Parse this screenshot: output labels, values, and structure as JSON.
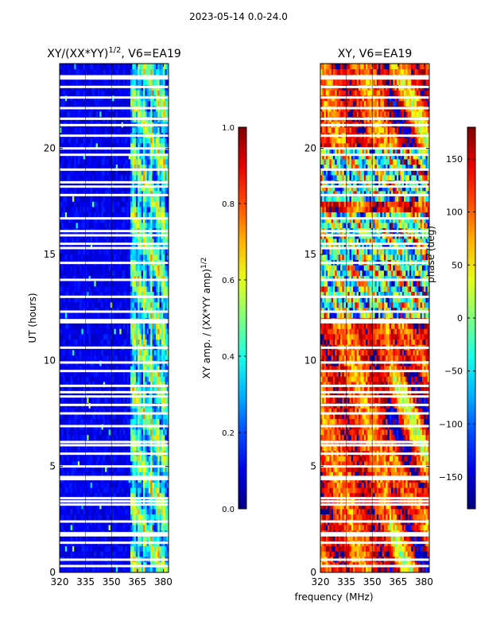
{
  "figure": {
    "suptitle": "2023-05-14 0.0-24.0",
    "xlabel": "frequency (MHz)"
  },
  "chart_data": [
    {
      "type": "heatmap",
      "title": "XY/(XX*YY)^1/2, V6=EA19",
      "title_main": "XY/(XX*YY)",
      "title_exp": "1/2",
      "title_tail": ", V6=EA19",
      "xlabel": "frequency (MHz)",
      "ylabel": "UT (hours)",
      "xlim": [
        320,
        383
      ],
      "ylim": [
        0,
        24
      ],
      "xticks": [
        320,
        335,
        350,
        365,
        380
      ],
      "yticks": [
        0,
        5,
        10,
        15,
        20
      ],
      "colorbar": {
        "label_main": "XY amp. / (XX*YY amp)",
        "label_exp": "1/2",
        "range": [
          0.0,
          1.0
        ],
        "ticks": [
          "0.0",
          "0.2",
          "0.4",
          "0.6",
          "0.8",
          "1.0"
        ],
        "tick_values": [
          0.0,
          0.2,
          0.4,
          0.6,
          0.8,
          1.0
        ]
      },
      "colormap": "jet"
    },
    {
      "type": "heatmap",
      "title": "XY, V6=EA19",
      "xlabel": "frequency (MHz)",
      "ylabel": "",
      "xlim": [
        320,
        383
      ],
      "ylim": [
        0,
        24
      ],
      "xticks": [
        320,
        335,
        350,
        365,
        380
      ],
      "yticks": [
        0,
        5,
        10,
        15,
        20
      ],
      "colorbar": {
        "label_main": "phase (deg)",
        "range": [
          -180,
          180
        ],
        "ticks": [
          "−150",
          "−100",
          "−50",
          "0",
          "50",
          "100",
          "150"
        ],
        "tick_values": [
          -150,
          -100,
          -50,
          0,
          50,
          100,
          150
        ]
      },
      "colormap": "jet"
    }
  ],
  "blank_rows_ut": [
    0.3,
    0.6,
    1.4,
    1.75,
    1.85,
    2.4,
    3.2,
    3.35,
    3.5,
    4.4,
    4.5,
    5.0,
    5.6,
    6.0,
    6.15,
    6.9,
    7.5,
    7.9,
    8.3,
    8.5,
    8.8,
    9.5,
    9.9,
    10.6,
    11.8,
    11.9,
    12.3,
    13.0,
    13.8,
    14.6,
    15.3,
    15.5,
    15.9,
    16.1,
    16.7,
    17.8,
    18.2,
    18.4,
    19.0,
    19.7,
    20.0,
    20.6,
    21.1,
    21.4,
    21.9,
    22.4,
    22.9,
    23.3,
    23.4
  ],
  "dark_lines_mhz": [
    335,
    350
  ]
}
